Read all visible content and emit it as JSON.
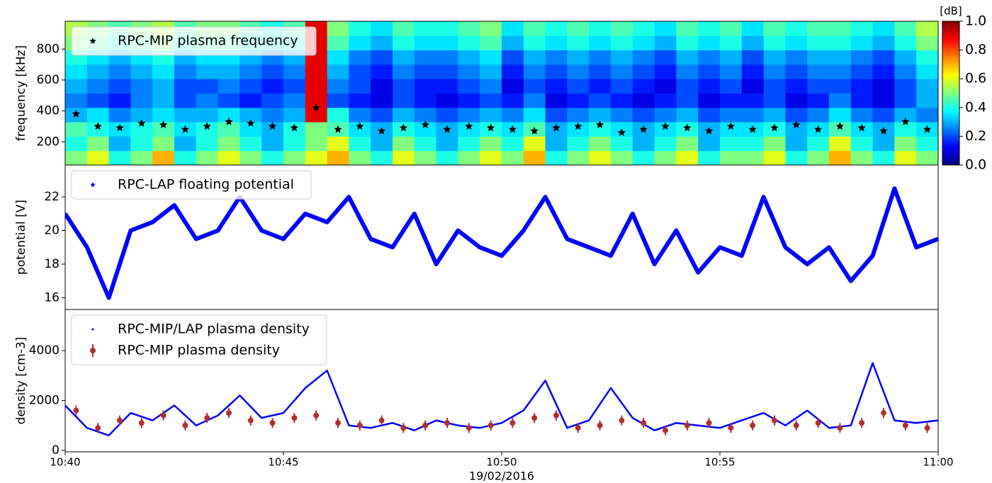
{
  "chart_data": [
    {
      "type": "heatmap",
      "y_label": "frequency [kHz]",
      "x": [
        640,
        640.5,
        641,
        641.5,
        642,
        642.5,
        643,
        643.5,
        644,
        644.5,
        645,
        645.5,
        646,
        646.5,
        647,
        647.5,
        648,
        648.5,
        649,
        649.5,
        650,
        650.5,
        651,
        651.5,
        652,
        652.5,
        653,
        653.5,
        654,
        654.5,
        655,
        655.5,
        656,
        656.5,
        657,
        657.5,
        658,
        658.5,
        659,
        659.5,
        660
      ],
      "y": [
        50,
        143,
        236,
        329,
        422,
        515,
        608,
        701,
        794,
        887,
        980
      ],
      "z": [
        [
          0.5,
          0.6,
          0.4,
          0.5,
          0.7,
          0.4,
          0.5,
          0.6,
          0.5,
          0.4,
          0.5,
          0.6,
          0.7,
          0.5,
          0.4,
          0.6,
          0.5,
          0.4,
          0.5,
          0.6,
          0.5,
          0.7,
          0.4,
          0.5,
          0.6,
          0.5,
          0.4,
          0.5,
          0.6,
          0.4,
          0.5,
          0.5,
          0.6,
          0.4,
          0.5,
          0.7,
          0.5,
          0.4,
          0.6,
          0.5
        ],
        [
          0.4,
          0.5,
          0.3,
          0.4,
          0.5,
          0.3,
          0.4,
          0.5,
          0.4,
          0.3,
          0.4,
          0.5,
          0.6,
          0.4,
          0.3,
          0.5,
          0.4,
          0.3,
          0.4,
          0.5,
          0.4,
          0.6,
          0.3,
          0.4,
          0.5,
          0.4,
          0.3,
          0.4,
          0.5,
          0.3,
          0.4,
          0.4,
          0.5,
          0.3,
          0.4,
          0.6,
          0.4,
          0.3,
          0.5,
          0.4
        ],
        [
          0.45,
          0.4,
          0.35,
          0.4,
          0.45,
          0.35,
          0.4,
          0.45,
          0.35,
          0.3,
          0.4,
          0.5,
          0.45,
          0.35,
          0.3,
          0.4,
          0.35,
          0.3,
          0.35,
          0.4,
          0.35,
          0.45,
          0.3,
          0.35,
          0.4,
          0.35,
          0.3,
          0.35,
          0.4,
          0.3,
          0.35,
          0.35,
          0.4,
          0.3,
          0.35,
          0.45,
          0.35,
          0.3,
          0.4,
          0.35
        ],
        [
          0.3,
          0.35,
          0.25,
          0.3,
          0.35,
          0.3,
          0.3,
          0.35,
          0.3,
          0.25,
          0.3,
          0.9,
          0.4,
          0.25,
          0.2,
          0.3,
          0.25,
          0.2,
          0.25,
          0.3,
          0.25,
          0.35,
          0.2,
          0.25,
          0.3,
          0.25,
          0.2,
          0.25,
          0.3,
          0.2,
          0.25,
          0.25,
          0.3,
          0.2,
          0.25,
          0.35,
          0.25,
          0.2,
          0.3,
          0.25
        ],
        [
          0.25,
          0.2,
          0.15,
          0.25,
          0.3,
          0.2,
          0.25,
          0.2,
          0.15,
          0.2,
          0.25,
          0.9,
          0.2,
          0.15,
          0.1,
          0.2,
          0.15,
          0.1,
          0.15,
          0.2,
          0.15,
          0.25,
          0.1,
          0.15,
          0.2,
          0.15,
          0.1,
          0.15,
          0.2,
          0.1,
          0.15,
          0.15,
          0.2,
          0.1,
          0.15,
          0.25,
          0.15,
          0.1,
          0.2,
          0.3
        ],
        [
          0.3,
          0.25,
          0.2,
          0.25,
          0.3,
          0.2,
          0.2,
          0.25,
          0.2,
          0.15,
          0.2,
          0.9,
          0.25,
          0.2,
          0.1,
          0.2,
          0.15,
          0.15,
          0.2,
          0.25,
          0.1,
          0.2,
          0.15,
          0.2,
          0.15,
          0.2,
          0.15,
          0.1,
          0.2,
          0.15,
          0.2,
          0.1,
          0.2,
          0.15,
          0.2,
          0.2,
          0.15,
          0.1,
          0.2,
          0.3
        ],
        [
          0.35,
          0.3,
          0.25,
          0.3,
          0.35,
          0.25,
          0.3,
          0.3,
          0.25,
          0.2,
          0.25,
          0.9,
          0.3,
          0.2,
          0.15,
          0.25,
          0.2,
          0.2,
          0.25,
          0.3,
          0.15,
          0.25,
          0.2,
          0.25,
          0.2,
          0.25,
          0.2,
          0.15,
          0.25,
          0.2,
          0.25,
          0.15,
          0.25,
          0.2,
          0.25,
          0.25,
          0.2,
          0.15,
          0.25,
          0.35
        ],
        [
          0.4,
          0.35,
          0.3,
          0.35,
          0.4,
          0.3,
          0.35,
          0.35,
          0.3,
          0.25,
          0.3,
          0.9,
          0.35,
          0.25,
          0.2,
          0.3,
          0.25,
          0.25,
          0.3,
          0.35,
          0.2,
          0.3,
          0.25,
          0.3,
          0.25,
          0.3,
          0.25,
          0.2,
          0.3,
          0.25,
          0.3,
          0.2,
          0.3,
          0.25,
          0.3,
          0.3,
          0.25,
          0.2,
          0.3,
          0.4
        ],
        [
          0.5,
          0.45,
          0.4,
          0.45,
          0.5,
          0.4,
          0.45,
          0.45,
          0.4,
          0.35,
          0.4,
          0.9,
          0.45,
          0.35,
          0.3,
          0.4,
          0.35,
          0.35,
          0.4,
          0.45,
          0.3,
          0.4,
          0.35,
          0.4,
          0.35,
          0.4,
          0.35,
          0.3,
          0.4,
          0.35,
          0.4,
          0.3,
          0.4,
          0.35,
          0.4,
          0.4,
          0.35,
          0.3,
          0.4,
          0.5
        ],
        [
          0.55,
          0.5,
          0.45,
          0.5,
          0.55,
          0.45,
          0.5,
          0.5,
          0.45,
          0.4,
          0.45,
          0.9,
          0.5,
          0.4,
          0.35,
          0.45,
          0.4,
          0.4,
          0.45,
          0.5,
          0.35,
          0.45,
          0.4,
          0.45,
          0.4,
          0.45,
          0.4,
          0.35,
          0.45,
          0.4,
          0.45,
          0.35,
          0.45,
          0.4,
          0.45,
          0.45,
          0.4,
          0.35,
          0.45,
          0.55
        ]
      ],
      "series": [
        {
          "name": "RPC-MIP plasma frequency",
          "type": "scatter",
          "color": "#000000",
          "x": [
            640.25,
            640.75,
            641.25,
            641.75,
            642.25,
            642.75,
            643.25,
            643.75,
            644.25,
            644.75,
            645.25,
            645.75,
            646.25,
            646.75,
            647.25,
            647.75,
            648.25,
            648.75,
            649.25,
            649.75,
            650.25,
            650.75,
            651.25,
            651.75,
            652.25,
            652.75,
            653.25,
            653.75,
            654.25,
            654.75,
            655.25,
            655.75,
            656.25,
            656.75,
            657.25,
            657.75,
            658.25,
            658.75,
            659.25,
            659.75
          ],
          "values": [
            380,
            300,
            290,
            320,
            310,
            280,
            300,
            330,
            320,
            300,
            290,
            420,
            280,
            300,
            270,
            290,
            310,
            280,
            300,
            290,
            280,
            270,
            290,
            300,
            310,
            260,
            280,
            300,
            290,
            270,
            300,
            280,
            290,
            310,
            280,
            300,
            290,
            270,
            330,
            280
          ]
        }
      ],
      "xlim": [
        640,
        660
      ],
      "ylim": [
        50,
        980
      ],
      "yticks": [
        200,
        400,
        600,
        800
      ],
      "legend": "upper left",
      "colorbar": {
        "label": "[dB]",
        "lim": [
          0,
          1
        ],
        "colormap": "jet",
        "ticks": [
          {
            "value": 0,
            "label": "0.0"
          },
          0.2,
          0.4,
          0.6,
          0.8,
          {
            "value": 1,
            "label": "1.0"
          }
        ]
      }
    },
    {
      "type": "line",
      "y_label": "potential [V]",
      "series": [
        {
          "name": "RPC-LAP floating potential",
          "type": "line",
          "color": "#0000ff",
          "x": [
            640,
            640.5,
            641,
            641.5,
            642,
            642.5,
            643,
            643.5,
            644,
            644.5,
            645,
            645.5,
            646,
            646.5,
            647,
            647.5,
            648,
            648.5,
            649,
            649.5,
            650,
            650.5,
            651,
            651.5,
            652,
            652.5,
            653,
            653.5,
            654,
            654.5,
            655,
            655.5,
            656,
            656.5,
            657,
            657.5,
            658,
            658.5,
            659,
            659.5,
            660
          ],
          "values": [
            21,
            19,
            16,
            20,
            20.5,
            21.5,
            19.5,
            20,
            22,
            20,
            19.5,
            21,
            20.5,
            22,
            19.5,
            19,
            21,
            18,
            20,
            19,
            18.5,
            20,
            22,
            19.5,
            19,
            18.5,
            21,
            18,
            20,
            17.5,
            19,
            18.5,
            22,
            19,
            18,
            19,
            17,
            18.5,
            22.5,
            19,
            19.5
          ]
        }
      ],
      "xlim": [
        640,
        660
      ],
      "ylim": [
        15.3,
        23.9
      ],
      "yticks": [
        16,
        18,
        20,
        22
      ],
      "legend": "upper left"
    },
    {
      "type": "line",
      "y_label": "density [cm-3]",
      "x_label": "19/02/2016",
      "series": [
        {
          "name": "RPC-MIP/LAP plasma density",
          "type": "line",
          "color": "#0000ff",
          "x": [
            640,
            640.5,
            641,
            641.5,
            642,
            642.5,
            643,
            643.5,
            644,
            644.5,
            645,
            645.5,
            646,
            646.5,
            647,
            647.5,
            648,
            648.5,
            649,
            649.5,
            650,
            650.5,
            651,
            651.5,
            652,
            652.5,
            653,
            653.5,
            654,
            654.5,
            655,
            655.5,
            656,
            656.5,
            657,
            657.5,
            658,
            658.5,
            659,
            659.5,
            660
          ],
          "values": [
            1800,
            900,
            600,
            1500,
            1200,
            1800,
            1000,
            1400,
            2200,
            1300,
            1500,
            2500,
            3200,
            1000,
            900,
            1100,
            800,
            1200,
            1000,
            900,
            1100,
            1600,
            2800,
            900,
            1200,
            2500,
            1300,
            800,
            1100,
            1000,
            900,
            1200,
            1500,
            1000,
            1600,
            900,
            1000,
            3500,
            1200,
            1100,
            1200
          ]
        },
        {
          "name": "RPC-MIP plasma density",
          "type": "errorbar",
          "color": "#b03030",
          "error": 200,
          "x": [
            640.25,
            640.75,
            641.25,
            641.75,
            642.25,
            642.75,
            643.25,
            643.75,
            644.25,
            644.75,
            645.25,
            645.75,
            646.25,
            646.75,
            647.25,
            647.75,
            648.25,
            648.75,
            649.25,
            649.75,
            650.25,
            650.75,
            651.25,
            651.75,
            652.25,
            652.75,
            653.25,
            653.75,
            654.25,
            654.75,
            655.25,
            655.75,
            656.25,
            656.75,
            657.25,
            657.75,
            658.25,
            658.75,
            659.25,
            659.75
          ],
          "values": [
            1600,
            900,
            1200,
            1100,
            1400,
            1000,
            1300,
            1500,
            1200,
            1100,
            1300,
            1400,
            1100,
            1000,
            1200,
            900,
            1000,
            1100,
            900,
            1000,
            1100,
            1300,
            1400,
            900,
            1000,
            1200,
            1100,
            800,
            1000,
            1100,
            900,
            1000,
            1200,
            1000,
            1100,
            900,
            1100,
            1500,
            1000,
            900
          ]
        }
      ],
      "xlim": [
        640,
        660
      ],
      "ylim": [
        -60,
        5650
      ],
      "yticks": [
        0,
        2000,
        4000
      ],
      "legend": "upper left",
      "xticks": [
        {
          "value": 640,
          "label": "10:40"
        },
        {
          "value": 645,
          "label": "10:45"
        },
        {
          "value": 650,
          "label": "10:50"
        },
        {
          "value": 655,
          "label": "10:55"
        },
        {
          "value": 660,
          "label": "11:00"
        }
      ]
    }
  ]
}
